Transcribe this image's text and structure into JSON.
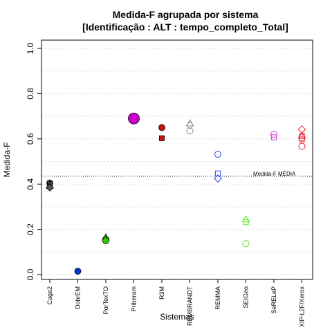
{
  "chart_data": {
    "type": "scatter",
    "title": "Medida-F agrupada por sistema",
    "subtitle": "[Identificação : ALT : tempo_completo_Total]",
    "xlabel": "Sistemas",
    "ylabel": "Medida-F",
    "ylim": [
      0.0,
      1.0
    ],
    "yticks": [
      "0.0",
      "0.2",
      "0.4",
      "0.6",
      "0.8",
      "1.0"
    ],
    "grid": true,
    "categories": [
      "Cage2",
      "DobrEM",
      "PorTexTO",
      "Priberam",
      "R3M",
      "REMBRANDT",
      "REMMA",
      "SEIGeo",
      "SeRELeP",
      "XIP-L2F/Xerox"
    ],
    "mean": {
      "value": 0.435,
      "label": "Medida-F MÉDIA"
    },
    "points": [
      {
        "cat": 0,
        "y": 0.405,
        "shape": "circle",
        "color": "#555555",
        "fill": true
      },
      {
        "cat": 0,
        "y": 0.4,
        "shape": "square",
        "color": "#555555",
        "fill": true
      },
      {
        "cat": 0,
        "y": 0.393,
        "shape": "triangle",
        "color": "#555555",
        "fill": true
      },
      {
        "cat": 0,
        "y": 0.385,
        "shape": "diamond",
        "color": "#555555",
        "fill": true
      },
      {
        "cat": 1,
        "y": 0.015,
        "shape": "circle",
        "color": "#0033cc",
        "fill": true
      },
      {
        "cat": 2,
        "y": 0.165,
        "shape": "triangle",
        "color": "#33cc00",
        "fill": true
      },
      {
        "cat": 2,
        "y": 0.157,
        "shape": "circle",
        "color": "#33cc00",
        "fill": true
      },
      {
        "cat": 2,
        "y": 0.15,
        "shape": "circle",
        "color": "#33cc00",
        "fill": true
      },
      {
        "cat": 3,
        "y": 0.69,
        "shape": "circle",
        "color": "#cc00cc",
        "fill": true,
        "big": true
      },
      {
        "cat": 4,
        "y": 0.65,
        "shape": "circle",
        "color": "#cc1111",
        "fill": true
      },
      {
        "cat": 4,
        "y": 0.603,
        "shape": "square",
        "color": "#cc1111",
        "fill": true
      },
      {
        "cat": 5,
        "y": 0.67,
        "shape": "triangle",
        "color": "#999999",
        "fill": false
      },
      {
        "cat": 5,
        "y": 0.66,
        "shape": "diamond",
        "color": "#999999",
        "fill": false
      },
      {
        "cat": 5,
        "y": 0.635,
        "shape": "circle",
        "color": "#999999",
        "fill": false
      },
      {
        "cat": 6,
        "y": 0.532,
        "shape": "circle",
        "color": "#3355ee",
        "fill": false
      },
      {
        "cat": 6,
        "y": 0.447,
        "shape": "square",
        "color": "#3355ee",
        "fill": false
      },
      {
        "cat": 6,
        "y": 0.425,
        "shape": "diamond",
        "color": "#3355ee",
        "fill": false
      },
      {
        "cat": 7,
        "y": 0.245,
        "shape": "triangle",
        "color": "#66ee33",
        "fill": false
      },
      {
        "cat": 7,
        "y": 0.232,
        "shape": "square",
        "color": "#66ee33",
        "fill": false
      },
      {
        "cat": 7,
        "y": 0.137,
        "shape": "circle",
        "color": "#66ee33",
        "fill": false
      },
      {
        "cat": 8,
        "y": 0.62,
        "shape": "circle",
        "color": "#dd44dd",
        "fill": false
      },
      {
        "cat": 8,
        "y": 0.607,
        "shape": "square",
        "color": "#dd44dd",
        "fill": false
      },
      {
        "cat": 9,
        "y": 0.642,
        "shape": "diamond",
        "color": "#ee3344",
        "fill": false
      },
      {
        "cat": 9,
        "y": 0.615,
        "shape": "triangle",
        "color": "#ee3344",
        "fill": false
      },
      {
        "cat": 9,
        "y": 0.613,
        "shape": "square",
        "color": "#ee3344",
        "fill": false
      },
      {
        "cat": 9,
        "y": 0.605,
        "shape": "circle",
        "color": "#ee3344",
        "fill": false
      },
      {
        "cat": 9,
        "y": 0.598,
        "shape": "square",
        "color": "#ee3344",
        "fill": false
      },
      {
        "cat": 9,
        "y": 0.567,
        "shape": "circle",
        "color": "#ee3344",
        "fill": false
      }
    ]
  }
}
